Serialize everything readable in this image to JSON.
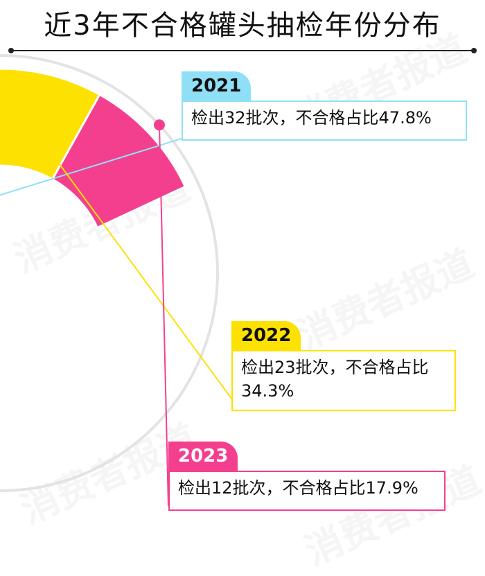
{
  "title": "近3年不合格罐头抽检年份分布",
  "watermark": "消费者报道",
  "colors": {
    "y2021": "#8fe0f7",
    "y2022": "#fde100",
    "y2023": "#f43f8e",
    "ring": "#e3e3e3",
    "title": "#111111"
  },
  "chart_data": {
    "type": "pie",
    "title": "近3年不合格罐头抽检年份分布",
    "categories": [
      "2021年",
      "2022年",
      "2023年"
    ],
    "values": [
      32,
      23,
      12
    ],
    "percentages": [
      47.8,
      34.3,
      17.9
    ],
    "unit": "批次"
  },
  "callouts": [
    {
      "year": "2021年",
      "text": "检出32批次，不合格占比47.8%"
    },
    {
      "year": "2022年",
      "text": "检出23批次，不合格占比34.3%"
    },
    {
      "year": "2023年",
      "text": "检出12批次，不合格占比17.9%"
    }
  ]
}
